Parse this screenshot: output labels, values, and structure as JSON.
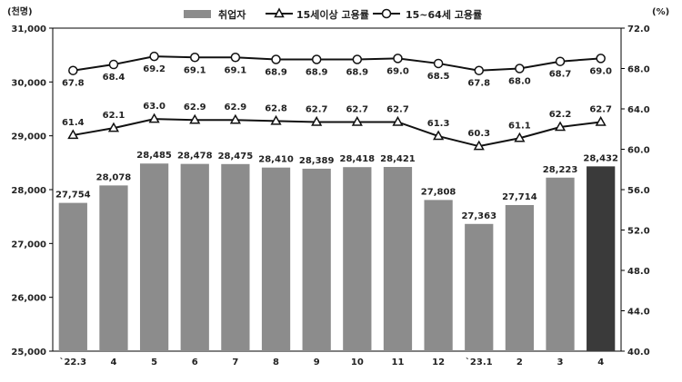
{
  "chart_data": {
    "type": "bar",
    "categories": [
      "`22.3",
      "4",
      "5",
      "6",
      "7",
      "8",
      "9",
      "10",
      "11",
      "12",
      "`23.1",
      "2",
      "3",
      "4"
    ],
    "series": [
      {
        "name": "취업자",
        "type": "bar",
        "axis": "left",
        "values": [
          27754,
          28078,
          28485,
          28478,
          28475,
          28410,
          28389,
          28418,
          28421,
          27808,
          27363,
          27714,
          28223,
          28432
        ],
        "value_labels": [
          "27,754",
          "28,078",
          "28,485",
          "28,478",
          "28,475",
          "28,410",
          "28,389",
          "28,418",
          "28,421",
          "27,808",
          "27,363",
          "27,714",
          "28,223",
          "28,432"
        ],
        "highlight_last": true
      },
      {
        "name": "15세이상 고용률",
        "type": "line",
        "axis": "right",
        "marker": "triangle",
        "values": [
          61.4,
          62.1,
          63.0,
          62.9,
          62.9,
          62.8,
          62.7,
          62.7,
          62.7,
          61.3,
          60.3,
          61.1,
          62.2,
          62.7
        ],
        "value_labels": [
          "61.4",
          "62.1",
          "63.0",
          "62.9",
          "62.9",
          "62.8",
          "62.7",
          "62.7",
          "62.7",
          "61.3",
          "60.3",
          "61.1",
          "62.2",
          "62.7"
        ]
      },
      {
        "name": "15~64세 고용률",
        "type": "line",
        "axis": "right",
        "marker": "circle",
        "values": [
          67.8,
          68.4,
          69.2,
          69.1,
          69.1,
          68.9,
          68.9,
          68.9,
          69.0,
          68.5,
          67.8,
          68.0,
          68.7,
          69.0
        ],
        "value_labels": [
          "67.8",
          "68.4",
          "69.2",
          "69.1",
          "69.1",
          "68.9",
          "68.9",
          "68.9",
          "69.0",
          "68.5",
          "67.8",
          "68.0",
          "68.7",
          "69.0"
        ]
      }
    ],
    "y_left": {
      "unit": "(천명)",
      "ylim": [
        25000,
        31000
      ],
      "ticks": [
        25000,
        26000,
        27000,
        28000,
        29000,
        30000,
        31000
      ],
      "tick_labels": [
        "25,000",
        "26,000",
        "27,000",
        "28,000",
        "29,000",
        "30,000",
        "31,000"
      ]
    },
    "y_right": {
      "unit": "(%)",
      "ylim": [
        40,
        72
      ],
      "ticks": [
        40,
        44,
        48,
        52,
        56,
        60,
        64,
        68,
        72
      ],
      "tick_labels": [
        "40.0",
        "44.0",
        "48.0",
        "52.0",
        "56.0",
        "60.0",
        "64.0",
        "68.0",
        "72.0"
      ]
    },
    "grid": false,
    "legend_position": "top",
    "colors": {
      "bar": "#8c8c8c",
      "bar_highlight": "#3a3a3a",
      "line": "#111111",
      "marker_fill": "#ffffff"
    }
  }
}
